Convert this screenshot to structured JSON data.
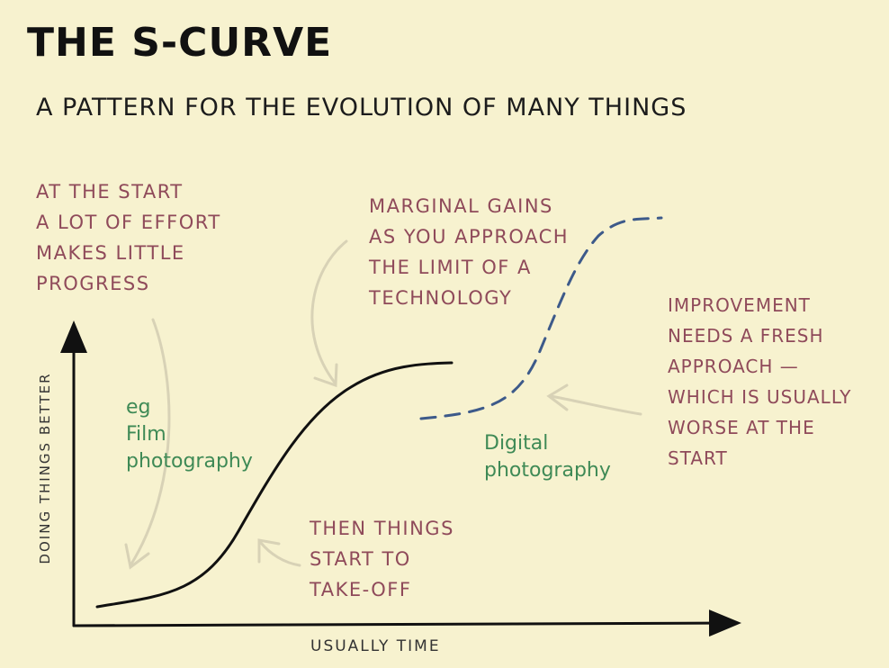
{
  "title": "THE S-CURVE",
  "subtitle": "A PATTERN FOR THE EVOLUTION OF MANY THINGS",
  "notes": {
    "start": [
      "AT THE START",
      "A LOT OF EFFORT",
      "MAKES LITTLE",
      "PROGRESS"
    ],
    "marginal": [
      "MARGINAL GAINS",
      "AS YOU APPROACH",
      "THE LIMIT OF A",
      "TECHNOLOGY"
    ],
    "improvement": [
      "IMPROVEMENT",
      "NEEDS A FRESH",
      "APPROACH —",
      "WHICH IS USUALLY",
      "WORSE AT THE",
      "START"
    ],
    "takeoff": [
      "THEN THINGS",
      "START TO",
      "TAKE-OFF"
    ]
  },
  "examples": {
    "film": [
      "eg",
      "Film",
      "photography"
    ],
    "digital": [
      "Digital",
      "photography"
    ]
  },
  "axes": {
    "y_label": "DOING THINGS BETTER",
    "x_label": "USUALLY TIME"
  },
  "colors": {
    "background": "#f7f2cf",
    "annotation": "#8f4a5a",
    "example": "#3f8a56",
    "curve": "#111111",
    "dashed_curve": "#3d5a8a",
    "arrow": "#d8d2b6"
  }
}
